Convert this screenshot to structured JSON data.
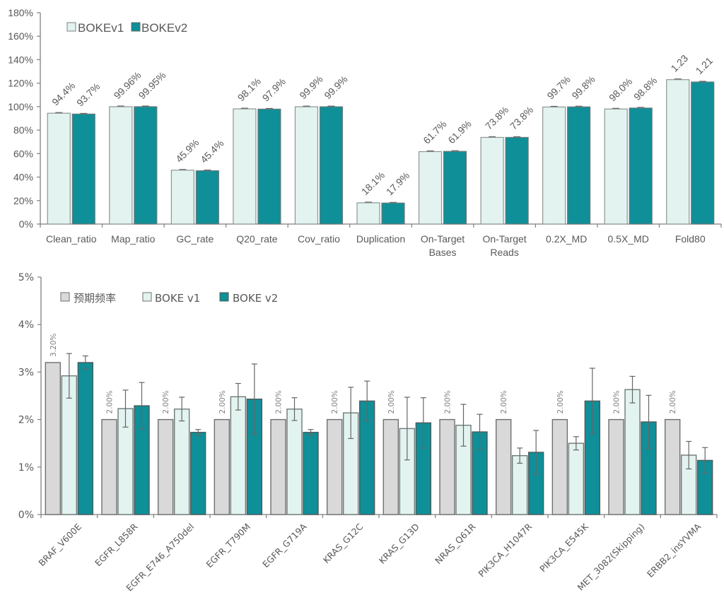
{
  "chart_data": [
    {
      "type": "bar",
      "title": "",
      "xlabel": "",
      "ylabel": "",
      "ylim": [
        0,
        1.8
      ],
      "yticks": [
        "0%",
        "20%",
        "40%",
        "60%",
        "80%",
        "100%",
        "120%",
        "140%",
        "160%",
        "180%"
      ],
      "grid": false,
      "legend": "top-left",
      "categories": [
        "Clean_ratio",
        "Map_ratio",
        "GC_rate",
        "Q20_rate",
        "Cov_ratio",
        "Duplication",
        "On-Target Bases",
        "On-Target Reads",
        "0.2X_MD",
        "0.5X_MD",
        "Fold80"
      ],
      "series": [
        {
          "name": "BOKEv1",
          "color": "#e2f3f0",
          "values": [
            0.944,
            0.9996,
            0.459,
            0.981,
            0.999,
            0.181,
            0.617,
            0.738,
            0.997,
            0.98,
            1.23
          ],
          "labels": [
            "94.4%",
            "99.96%",
            "45.9%",
            "98.1%",
            "99.9%",
            "18.1%",
            "61.7%",
            "73.8%",
            "99.7%",
            "98.0%",
            "1.23"
          ]
        },
        {
          "name": "BOKEv2",
          "color": "#0f8f98",
          "values": [
            0.937,
            0.9995,
            0.454,
            0.979,
            0.999,
            0.179,
            0.619,
            0.738,
            0.998,
            0.988,
            1.21
          ],
          "labels": [
            "93.7%",
            "99.95%",
            "45.4%",
            "97.9%",
            "99.9%",
            "17.9%",
            "61.9%",
            "73.8%",
            "99.8%",
            "98.8%",
            "1.21"
          ]
        }
      ]
    },
    {
      "type": "bar",
      "title": "",
      "xlabel": "",
      "ylabel": "",
      "ylim": [
        0,
        5
      ],
      "yticks": [
        "0%",
        "1%",
        "2%",
        "3%",
        "4%",
        "5%"
      ],
      "grid": false,
      "legend": "top-left",
      "categories": [
        "BRAF_V600E",
        "EGFR_L858R",
        "EGFR_E746_A750del",
        "EGFR_T790M",
        "EGFR_G719A",
        "KRAS_G12C",
        "KRAS_G13D",
        "NRAS_Q61R",
        "PIK3CA_H1047R",
        "PIK3CA_E545K",
        "MET_3082(Skipping)",
        "ERBB2_insYVMA"
      ],
      "series": [
        {
          "name": "预期频率",
          "color": "#d9d9d9",
          "values": [
            3.2,
            2.0,
            2.0,
            2.0,
            2.0,
            2.0,
            2.0,
            2.0,
            2.0,
            2.0,
            2.0,
            2.0
          ],
          "labels": [
            "3.20%",
            "2.00%",
            "2.00%",
            "2.00%",
            "2.00%",
            "2.00%",
            "2.00%",
            "2.00%",
            "2.00%",
            "2.00%",
            "2.00%",
            "2.00%"
          ]
        },
        {
          "name": "BOKE v1",
          "color": "#e2f3f0",
          "values": [
            2.92,
            2.23,
            2.22,
            2.48,
            2.22,
            2.14,
            1.81,
            1.88,
            1.24,
            1.5,
            2.63,
            1.25
          ],
          "errors": [
            0.47,
            0.39,
            0.25,
            0.28,
            0.24,
            0.54,
            0.66,
            0.44,
            0.16,
            0.14,
            0.28,
            0.29
          ]
        },
        {
          "name": "BOKE v2",
          "color": "#0f8f98",
          "values": [
            3.2,
            2.29,
            1.73,
            2.43,
            1.73,
            2.39,
            1.93,
            1.74,
            1.31,
            2.39,
            1.95,
            1.14
          ],
          "errors": [
            0.14,
            0.49,
            0.06,
            0.74,
            0.06,
            0.42,
            0.53,
            0.37,
            0.46,
            0.69,
            0.56,
            0.27
          ]
        }
      ]
    }
  ]
}
